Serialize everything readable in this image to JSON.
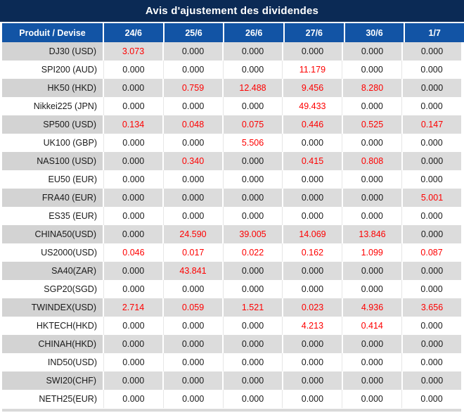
{
  "theme": {
    "title_bg": "#0b2a55",
    "header_bg": "#1254a5",
    "row_gray_product_bg": "#d3d3d3",
    "row_gray_value_bg": "#dcdcdc",
    "row_white_bg": "#ffffff",
    "red_value_color": "#fe0000",
    "value_text_color": "#1a1a1a",
    "header_text_color": "#ffffff"
  },
  "chart_data": {
    "type": "table",
    "title": "Avis d'ajustement des dividendes",
    "columns": [
      "Produit / Devise",
      "24/6",
      "25/6",
      "26/6",
      "27/6",
      "30/6",
      "1/7"
    ],
    "rows": [
      {
        "product": "DJ30 (USD)",
        "values": [
          "3.073",
          "0.000",
          "0.000",
          "0.000",
          "0.000",
          "0.000"
        ],
        "red": [
          1,
          0,
          0,
          0,
          0,
          0
        ]
      },
      {
        "product": "SPI200 (AUD)",
        "values": [
          "0.000",
          "0.000",
          "0.000",
          "11.179",
          "0.000",
          "0.000"
        ],
        "red": [
          0,
          0,
          0,
          1,
          0,
          0
        ]
      },
      {
        "product": "HK50 (HKD)",
        "values": [
          "0.000",
          "0.759",
          "12.488",
          "9.456",
          "8.280",
          "0.000"
        ],
        "red": [
          0,
          1,
          1,
          1,
          1,
          0
        ]
      },
      {
        "product": "Nikkei225 (JPN)",
        "values": [
          "0.000",
          "0.000",
          "0.000",
          "49.433",
          "0.000",
          "0.000"
        ],
        "red": [
          0,
          0,
          0,
          1,
          0,
          0
        ]
      },
      {
        "product": "SP500 (USD)",
        "values": [
          "0.134",
          "0.048",
          "0.075",
          "0.446",
          "0.525",
          "0.147"
        ],
        "red": [
          1,
          1,
          1,
          1,
          1,
          1
        ]
      },
      {
        "product": "UK100 (GBP)",
        "values": [
          "0.000",
          "0.000",
          "5.506",
          "0.000",
          "0.000",
          "0.000"
        ],
        "red": [
          0,
          0,
          1,
          0,
          0,
          0
        ]
      },
      {
        "product": "NAS100 (USD)",
        "values": [
          "0.000",
          "0.340",
          "0.000",
          "0.415",
          "0.808",
          "0.000"
        ],
        "red": [
          0,
          1,
          0,
          1,
          1,
          0
        ]
      },
      {
        "product": "EU50 (EUR)",
        "values": [
          "0.000",
          "0.000",
          "0.000",
          "0.000",
          "0.000",
          "0.000"
        ],
        "red": [
          0,
          0,
          0,
          0,
          0,
          0
        ]
      },
      {
        "product": "FRA40 (EUR)",
        "values": [
          "0.000",
          "0.000",
          "0.000",
          "0.000",
          "0.000",
          "5.001"
        ],
        "red": [
          0,
          0,
          0,
          0,
          0,
          1
        ]
      },
      {
        "product": "ES35 (EUR)",
        "values": [
          "0.000",
          "0.000",
          "0.000",
          "0.000",
          "0.000",
          "0.000"
        ],
        "red": [
          0,
          0,
          0,
          0,
          0,
          0
        ]
      },
      {
        "product": "CHINA50(USD)",
        "values": [
          "0.000",
          "24.590",
          "39.005",
          "14.069",
          "13.846",
          "0.000"
        ],
        "red": [
          0,
          1,
          1,
          1,
          1,
          0
        ]
      },
      {
        "product": "US2000(USD)",
        "values": [
          "0.046",
          "0.017",
          "0.022",
          "0.162",
          "1.099",
          "0.087"
        ],
        "red": [
          1,
          1,
          1,
          1,
          1,
          1
        ]
      },
      {
        "product": "SA40(ZAR)",
        "values": [
          "0.000",
          "43.841",
          "0.000",
          "0.000",
          "0.000",
          "0.000"
        ],
        "red": [
          0,
          1,
          0,
          0,
          0,
          0
        ]
      },
      {
        "product": "SGP20(SGD)",
        "values": [
          "0.000",
          "0.000",
          "0.000",
          "0.000",
          "0.000",
          "0.000"
        ],
        "red": [
          0,
          0,
          0,
          0,
          0,
          0
        ]
      },
      {
        "product": "TWINDEX(USD)",
        "values": [
          "2.714",
          "0.059",
          "1.521",
          "0.023",
          "4.936",
          "3.656"
        ],
        "red": [
          1,
          1,
          1,
          1,
          1,
          1
        ]
      },
      {
        "product": "HKTECH(HKD)",
        "values": [
          "0.000",
          "0.000",
          "0.000",
          "4.213",
          "0.414",
          "0.000"
        ],
        "red": [
          0,
          0,
          0,
          1,
          1,
          0
        ]
      },
      {
        "product": "CHINAH(HKD)",
        "values": [
          "0.000",
          "0.000",
          "0.000",
          "0.000",
          "0.000",
          "0.000"
        ],
        "red": [
          0,
          0,
          0,
          0,
          0,
          0
        ]
      },
      {
        "product": "IND50(USD)",
        "values": [
          "0.000",
          "0.000",
          "0.000",
          "0.000",
          "0.000",
          "0.000"
        ],
        "red": [
          0,
          0,
          0,
          0,
          0,
          0
        ]
      },
      {
        "product": "SWI20(CHF)",
        "values": [
          "0.000",
          "0.000",
          "0.000",
          "0.000",
          "0.000",
          "0.000"
        ],
        "red": [
          0,
          0,
          0,
          0,
          0,
          0
        ]
      },
      {
        "product": "NETH25(EUR)",
        "values": [
          "0.000",
          "0.000",
          "0.000",
          "0.000",
          "0.000",
          "0.000"
        ],
        "red": [
          0,
          0,
          0,
          0,
          0,
          0
        ]
      }
    ]
  }
}
